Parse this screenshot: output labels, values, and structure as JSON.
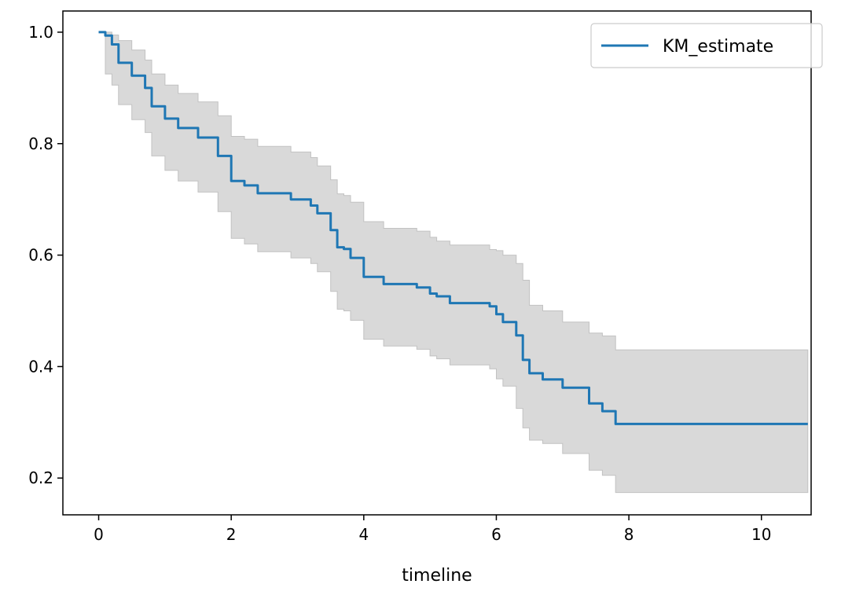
{
  "chart_data": {
    "type": "line",
    "title": "",
    "xlabel": "timeline",
    "ylabel": "",
    "xlim": [
      -0.54,
      10.75
    ],
    "ylim": [
      0.134,
      1.038
    ],
    "grid": false,
    "legend_placement": "top-right",
    "xticks": [
      0,
      2,
      4,
      6,
      8,
      10
    ],
    "yticks": [
      0.2,
      0.4,
      0.6,
      0.8,
      1.0
    ],
    "xtick_labels": [
      "0",
      "2",
      "4",
      "6",
      "8",
      "10"
    ],
    "ytick_labels": [
      "0.2",
      "0.4",
      "0.6",
      "0.8",
      "1.0"
    ],
    "series": [
      {
        "name": "KM_estimate",
        "color": "#1f77b4",
        "step": "post",
        "x": [
          0,
          0.1,
          0.2,
          0.3,
          0.5,
          0.7,
          0.8,
          1.0,
          1.2,
          1.5,
          1.8,
          2.0,
          2.2,
          2.4,
          2.9,
          3.2,
          3.3,
          3.5,
          3.6,
          3.7,
          3.8,
          4.0,
          4.3,
          4.8,
          5.0,
          5.1,
          5.3,
          5.9,
          6.0,
          6.1,
          6.3,
          6.4,
          6.5,
          6.7,
          7.0,
          7.4,
          7.6,
          7.8,
          10.7
        ],
        "y": [
          1.0,
          0.994,
          0.978,
          0.945,
          0.922,
          0.9,
          0.867,
          0.845,
          0.828,
          0.811,
          0.778,
          0.733,
          0.725,
          0.711,
          0.7,
          0.689,
          0.675,
          0.645,
          0.614,
          0.611,
          0.595,
          0.561,
          0.548,
          0.542,
          0.531,
          0.526,
          0.514,
          0.508,
          0.494,
          0.48,
          0.456,
          0.412,
          0.388,
          0.377,
          0.362,
          0.334,
          0.32,
          0.297,
          0.297
        ]
      }
    ],
    "confidence_band": {
      "color": "#d9d9d9",
      "x": [
        0,
        0.1,
        0.2,
        0.3,
        0.5,
        0.7,
        0.8,
        1.0,
        1.2,
        1.5,
        1.8,
        2.0,
        2.2,
        2.4,
        2.9,
        3.2,
        3.3,
        3.5,
        3.6,
        3.7,
        3.8,
        4.0,
        4.3,
        4.8,
        5.0,
        5.1,
        5.3,
        5.9,
        6.0,
        6.1,
        6.3,
        6.4,
        6.5,
        6.7,
        7.0,
        7.4,
        7.6,
        7.8,
        10.7
      ],
      "lower": [
        1.0,
        0.925,
        0.905,
        0.87,
        0.843,
        0.82,
        0.778,
        0.752,
        0.733,
        0.713,
        0.678,
        0.63,
        0.62,
        0.606,
        0.595,
        0.585,
        0.57,
        0.535,
        0.503,
        0.5,
        0.483,
        0.449,
        0.437,
        0.431,
        0.419,
        0.414,
        0.403,
        0.396,
        0.378,
        0.365,
        0.325,
        0.29,
        0.268,
        0.262,
        0.244,
        0.214,
        0.205,
        0.174,
        0.174
      ],
      "upper": [
        1.0,
        1.0,
        0.995,
        0.985,
        0.968,
        0.95,
        0.925,
        0.905,
        0.89,
        0.875,
        0.85,
        0.813,
        0.808,
        0.795,
        0.785,
        0.775,
        0.76,
        0.735,
        0.71,
        0.707,
        0.695,
        0.66,
        0.648,
        0.643,
        0.632,
        0.625,
        0.618,
        0.61,
        0.608,
        0.6,
        0.585,
        0.555,
        0.51,
        0.5,
        0.48,
        0.46,
        0.455,
        0.43,
        0.43
      ]
    }
  }
}
